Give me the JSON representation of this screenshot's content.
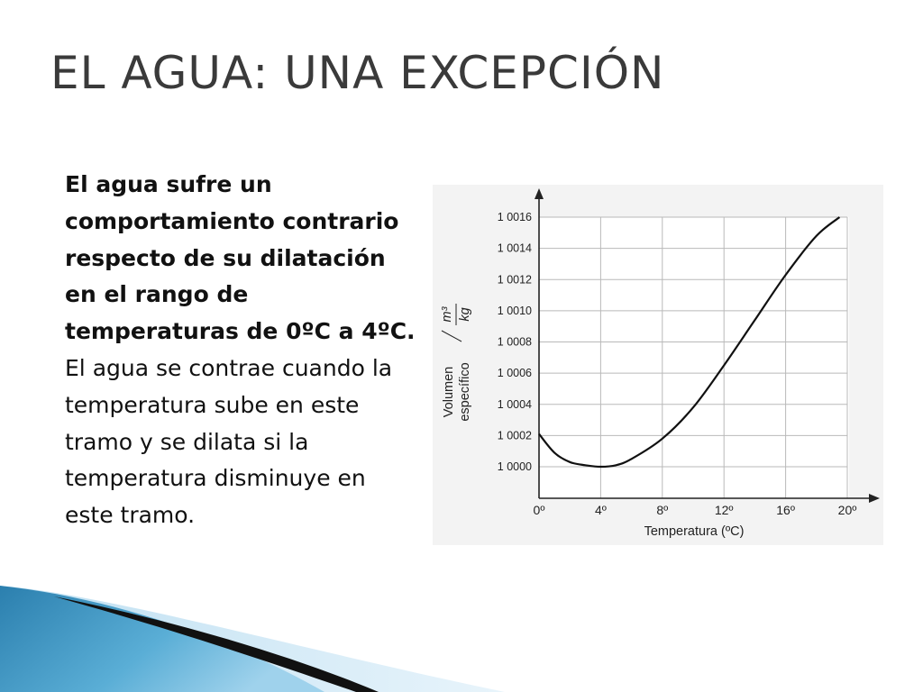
{
  "slide": {
    "title": "EL AGUA: UNA EXCEPCIÓN",
    "paragraph_bold": "El agua sufre un comportamiento contrario respecto de su dilatación en el rango de temperaturas de 0ºC a 4ºC.",
    "paragraph_regular": " El agua se contrae cuando la temperatura sube en este tramo y se dilata si la temperatura disminuye en este tramo."
  },
  "chart_data": {
    "type": "line",
    "title": "",
    "xlabel": "Temperatura (ºC)",
    "ylabel_line1": "Volumen",
    "ylabel_line2": "específico",
    "ylabel_unit_num": "m³",
    "ylabel_unit_den": "kg",
    "xlim": [
      0,
      20
    ],
    "ylim": [
      1.0,
      1.0016
    ],
    "x_ticks": [
      0,
      4,
      8,
      12,
      16,
      20
    ],
    "x_tick_labels": [
      "0º",
      "4º",
      "8º",
      "12º",
      "16º",
      "20º"
    ],
    "y_ticks": [
      1.0,
      1.0002,
      1.0004,
      1.0006,
      1.0008,
      1.001,
      1.0012,
      1.0014,
      1.0016
    ],
    "y_tick_labels": [
      "1 0000",
      "1 0002",
      "1 0004",
      "1 0006",
      "1 0008",
      "1 0010",
      "1 0012",
      "1 0014",
      "1 0016"
    ],
    "grid": true,
    "series": [
      {
        "color": "#111111",
        "x": [
          0,
          1,
          2,
          3,
          4,
          5,
          6,
          8,
          10,
          12,
          14,
          16,
          18,
          19.5
        ],
        "y": [
          1.00021,
          1.00009,
          1.00003,
          1.00001,
          1.0,
          1.00001,
          1.00005,
          1.00018,
          1.00038,
          1.00065,
          1.00094,
          1.00123,
          1.00148,
          1.0016
        ]
      }
    ]
  }
}
